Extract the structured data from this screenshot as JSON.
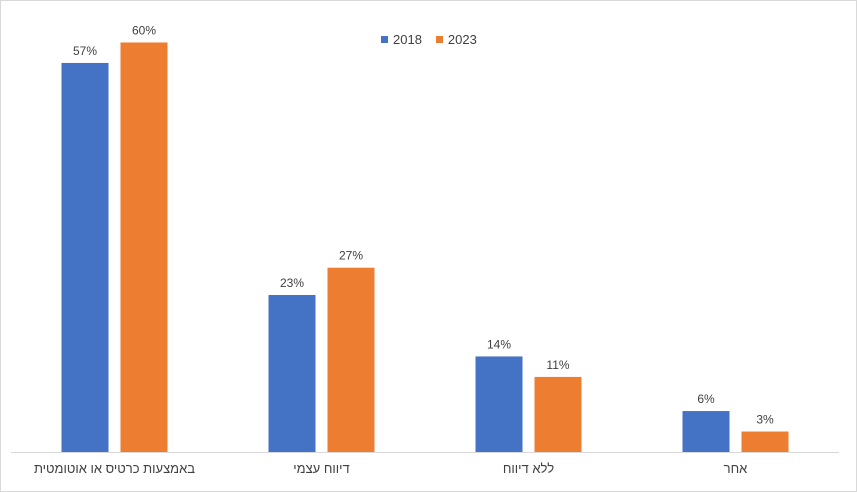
{
  "chart_data": {
    "type": "bar",
    "categories": [
      "באמצעות כרטיס או אוטומטית",
      "דיווח עצמי",
      "ללא דיווח",
      "אחר"
    ],
    "series": [
      {
        "name": "2018",
        "values": [
          57,
          23,
          14,
          6
        ],
        "labels": [
          "57%",
          "23%",
          "14%",
          "6%"
        ],
        "color": "#4472C4"
      },
      {
        "name": "2023",
        "values": [
          60,
          27,
          11,
          3
        ],
        "labels": [
          "60%",
          "27%",
          "11%",
          "3%"
        ],
        "color": "#ED7D31"
      }
    ],
    "ylim": [
      0,
      63
    ],
    "grid": false,
    "legend_position": "top-center",
    "title": "",
    "xlabel": "",
    "ylabel": ""
  }
}
